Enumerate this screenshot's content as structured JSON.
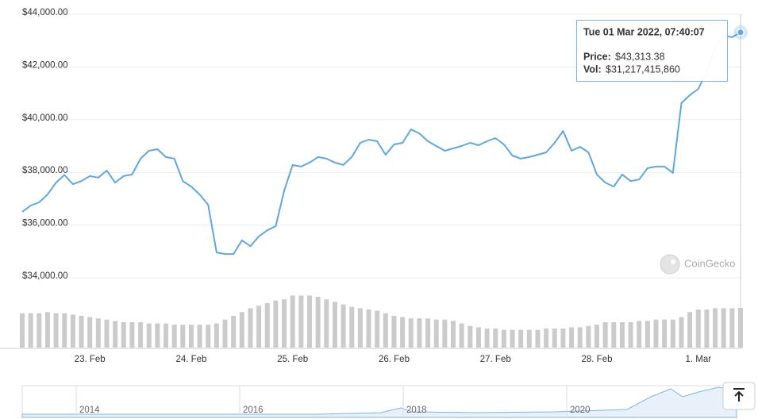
{
  "chart_data": {
    "type": "line",
    "categories": [
      null,
      null,
      null,
      null,
      null,
      null,
      null,
      null,
      "23. Feb",
      null,
      null,
      null,
      null,
      null,
      null,
      null,
      null,
      null,
      null,
      null,
      "24. Feb",
      null,
      null,
      null,
      null,
      null,
      null,
      null,
      null,
      null,
      null,
      null,
      "25. Feb",
      null,
      null,
      null,
      null,
      null,
      null,
      null,
      null,
      null,
      null,
      null,
      "26. Feb",
      null,
      null,
      null,
      null,
      null,
      null,
      null,
      null,
      null,
      null,
      null,
      "27. Feb",
      null,
      null,
      null,
      null,
      null,
      null,
      null,
      null,
      null,
      null,
      null,
      "28. Feb",
      null,
      null,
      null,
      null,
      null,
      null,
      null,
      null,
      null,
      null,
      null,
      "1. Mar",
      null,
      null,
      null,
      null,
      null
    ],
    "ylim": [
      34000,
      44000
    ],
    "yticks": [
      {
        "value": 34000,
        "label": "$34,000.00"
      },
      {
        "value": 36000,
        "label": "$36,000.00"
      },
      {
        "value": 38000,
        "label": "$38,000.00"
      },
      {
        "value": 40000,
        "label": "$40,000.00"
      },
      {
        "value": 42000,
        "label": "$42,000.00"
      },
      {
        "value": 44000,
        "label": "$44,000.00"
      }
    ],
    "y2lim": [
      0,
      62500000000.0
    ],
    "grid": true,
    "series": [
      {
        "type": "line",
        "color": "#5ea7e3",
        "values": [
          36500,
          36740,
          36860,
          37160,
          37610,
          37900,
          37550,
          37670,
          37860,
          37800,
          38070,
          37610,
          37860,
          37920,
          38520,
          38820,
          38880,
          38580,
          38520,
          37670,
          37460,
          37160,
          36770,
          34960,
          34900,
          34900,
          35420,
          35200,
          35570,
          35800,
          35960,
          37310,
          38280,
          38220,
          38370,
          38580,
          38520,
          38370,
          38280,
          38580,
          39120,
          39240,
          39180,
          38670,
          39060,
          39120,
          39630,
          39480,
          39180,
          39000,
          38820,
          38910,
          39000,
          39120,
          39030,
          39180,
          39300,
          39060,
          38640,
          38520,
          38580,
          38670,
          38760,
          39120,
          39570,
          38820,
          38970,
          38760,
          37920,
          37610,
          37460,
          37920,
          37670,
          37730,
          38160,
          38220,
          38220,
          37980,
          40630,
          40930,
          41170,
          41830,
          42730,
          43190,
          43130,
          43313.38
        ]
      },
      {
        "type": "bar",
        "axis": "y2",
        "color": "#cbcbcb",
        "values": [
          27000000000.0,
          27000000000.0,
          27000000000.0,
          28000000000.0,
          27000000000.0,
          27000000000.0,
          26000000000.0,
          25000000000.0,
          24000000000.0,
          23000000000.0,
          22000000000.0,
          21000000000.0,
          20000000000.0,
          20000000000.0,
          20000000000.0,
          19000000000.0,
          19000000000.0,
          19000000000.0,
          18000000000.0,
          18000000000.0,
          18000000000.0,
          18000000000.0,
          18000000000.0,
          19000000000.0,
          22000000000.0,
          25000000000.0,
          28000000000.0,
          31000000000.0,
          33000000000.0,
          35000000000.0,
          37000000000.0,
          38000000000.0,
          41000000000.0,
          41000000000.0,
          41000000000.0,
          40000000000.0,
          38000000000.0,
          36000000000.0,
          34000000000.0,
          32000000000.0,
          31000000000.0,
          30000000000.0,
          29000000000.0,
          27000000000.0,
          25000000000.0,
          24000000000.0,
          23000000000.0,
          23000000000.0,
          23000000000.0,
          22000000000.0,
          22000000000.0,
          21000000000.0,
          19000000000.0,
          17000000000.0,
          16000000000.0,
          15000000000.0,
          15000000000.0,
          14000000000.0,
          14000000000.0,
          14000000000.0,
          14000000000.0,
          14000000000.0,
          15000000000.0,
          15000000000.0,
          15000000000.0,
          16000000000.0,
          16000000000.0,
          17000000000.0,
          18000000000.0,
          20000000000.0,
          20000000000.0,
          20000000000.0,
          20000000000.0,
          21000000000.0,
          21000000000.0,
          22000000000.0,
          22000000000.0,
          22000000000.0,
          24000000000.0,
          28000000000.0,
          30000000000.0,
          30000000000.0,
          31000000000.0,
          31000000000.0,
          31000000000.0,
          31217415860
        ]
      }
    ],
    "tooltip": {
      "date": "Tue 01 Mar 2022, 07:40:07",
      "price_label": "Price:",
      "price": "$43,313.38",
      "vol_label": "Vol:",
      "volume": "$31,217,415,860"
    },
    "watermark": "CoinGecko",
    "navigator": {
      "labels": [
        "2014",
        "2016",
        "2018",
        "2020"
      ]
    }
  }
}
